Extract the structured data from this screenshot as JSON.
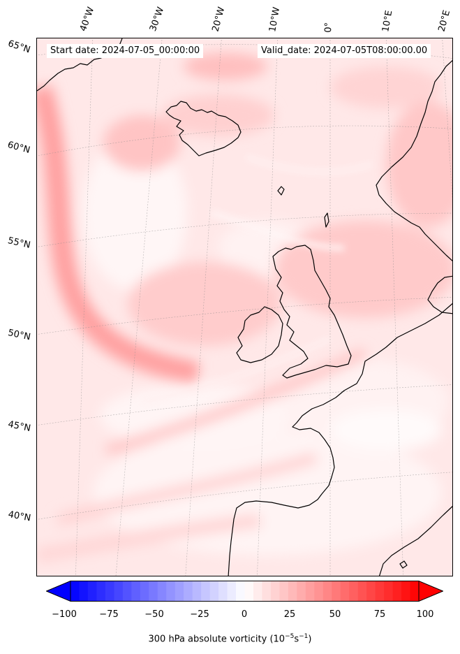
{
  "map": {
    "start_date": "Start date: 2024-07-05_00:00:00",
    "valid_date": "Valid_date: 2024-07-05T08:00:00.00",
    "longitude_labels": [
      "40°W",
      "30°W",
      "20°W",
      "10°W",
      "0°",
      "10°E",
      "20°E"
    ],
    "latitude_labels": [
      "65°N",
      "60°N",
      "55°N",
      "50°N",
      "45°N",
      "40°N"
    ],
    "region": "North Atlantic / Western Europe",
    "field": "300 hPa absolute vorticity"
  },
  "colorbar": {
    "ticks": [
      "−100",
      "−75",
      "−50",
      "−25",
      "0",
      "25",
      "50",
      "75",
      "100"
    ],
    "label_main": "300 hPa absolute vorticity (10",
    "label_exp1": "−5",
    "label_mid": "s",
    "label_exp2": "−1",
    "label_end": ")",
    "min": -100,
    "max": 100,
    "step": 5,
    "colormap": "bwr",
    "low_color": "#0000ff",
    "mid_color": "#ffffff",
    "high_color": "#ff0000"
  }
}
